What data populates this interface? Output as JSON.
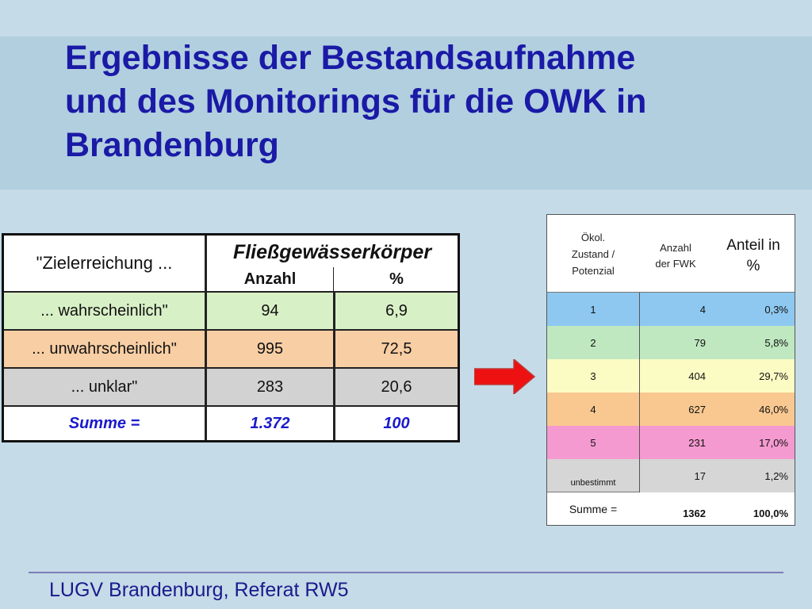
{
  "title": {
    "lines": [
      "Ergebnisse der Bestandsaufnahme",
      "und des Monitorings für die OWK in",
      "Brandenburg"
    ]
  },
  "left_table": {
    "header_col1": "\"Zielerreichung ...",
    "header_group": "Fließgewässerkörper",
    "header_anzahl": "Anzahl",
    "header_percent": "%",
    "rows": [
      {
        "label": "... wahrscheinlich\"",
        "anzahl": "94",
        "percent": "6,9",
        "color": "#d8f0c6"
      },
      {
        "label": "... unwahrscheinlich\"",
        "anzahl": "995",
        "percent": "72,5",
        "color": "#f8cea4"
      },
      {
        "label": "... unklar\"",
        "anzahl": "283",
        "percent": "20,6",
        "color": "#d2d2d2"
      }
    ],
    "sum": {
      "label": "Summe =",
      "anzahl": "1.372",
      "percent": "100"
    }
  },
  "right_table": {
    "header_col1": [
      "Ökol.",
      "Zustand /",
      "Potenzial"
    ],
    "header_col2": [
      "Anzahl",
      "der FWK"
    ],
    "header_col3": [
      "Anteil in",
      "%"
    ],
    "rows": [
      {
        "zustand": "1",
        "anzahl": "4",
        "anteil": "0,3%",
        "color": "#8ec8f0"
      },
      {
        "zustand": "2",
        "anzahl": "79",
        "anteil": "5,8%",
        "color": "#bfe8c0"
      },
      {
        "zustand": "3",
        "anzahl": "404",
        "anteil": "29,7%",
        "color": "#fbfbc4"
      },
      {
        "zustand": "4",
        "anzahl": "627",
        "anteil": "46,0%",
        "color": "#f9c890"
      },
      {
        "zustand": "5",
        "anzahl": "231",
        "anteil": "17,0%",
        "color": "#f49ad0"
      },
      {
        "zustand": "unbestimmt",
        "anzahl": "17",
        "anteil": "1,2%",
        "color": "#d6d6d6"
      }
    ],
    "sum": {
      "label": "Summe =",
      "anzahl": "1362",
      "anteil": "100,0%"
    }
  },
  "colors": {
    "title": "#1a1aa6",
    "accent_blue": "#1a1acc",
    "arrow": "#ee1111"
  },
  "footer": "LUGV Brandenburg, Referat RW5",
  "icons": {
    "arrow": "right-arrow-icon"
  }
}
